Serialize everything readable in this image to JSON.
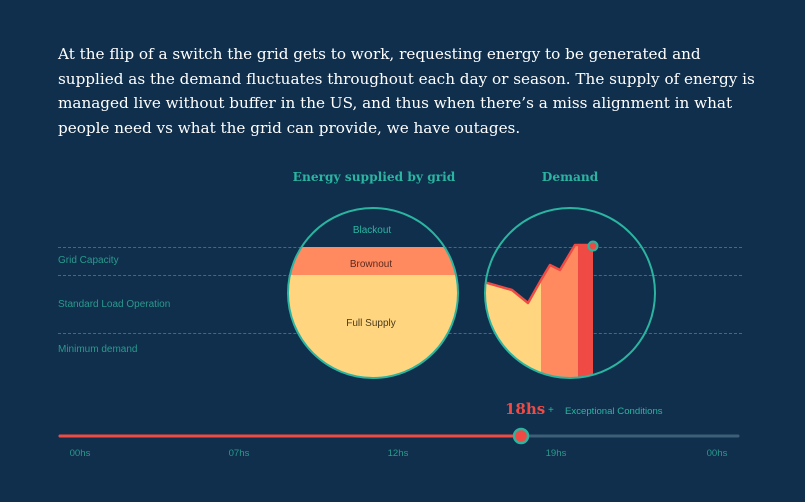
{
  "intro_text": "At the flip of a switch the grid gets to work, requesting energy to be generated and supplied as the demand fluctuates throughout each day or season.  The supply of energy is managed live without buffer in the US, and thus when there’s a miss alignment in what people need vs what the grid can provide, we have outages.",
  "supply_chart": {
    "title": "Energy supplied by grid",
    "zones": {
      "blackout": "Blackout",
      "brownout": "Brownout",
      "full_supply": "Full Supply"
    }
  },
  "demand_chart": {
    "title": "Demand"
  },
  "levels": {
    "grid_capacity": "Grid Capacity",
    "standard_load": "Standard Load Operation",
    "minimum_demand": "Minimum demand"
  },
  "timeline": {
    "current_time": "18hs",
    "plus": "+",
    "condition": "Exceptional Conditions",
    "ticks": [
      "00hs",
      "07hs",
      "12hs",
      "19hs",
      "00hs"
    ],
    "progress": 0.68
  },
  "colors": {
    "background": "#0f2f4d",
    "teal": "#2bb5a0",
    "full_supply": "#ffd580",
    "brownout": "#ff8a60",
    "red": "#ef4b44"
  }
}
